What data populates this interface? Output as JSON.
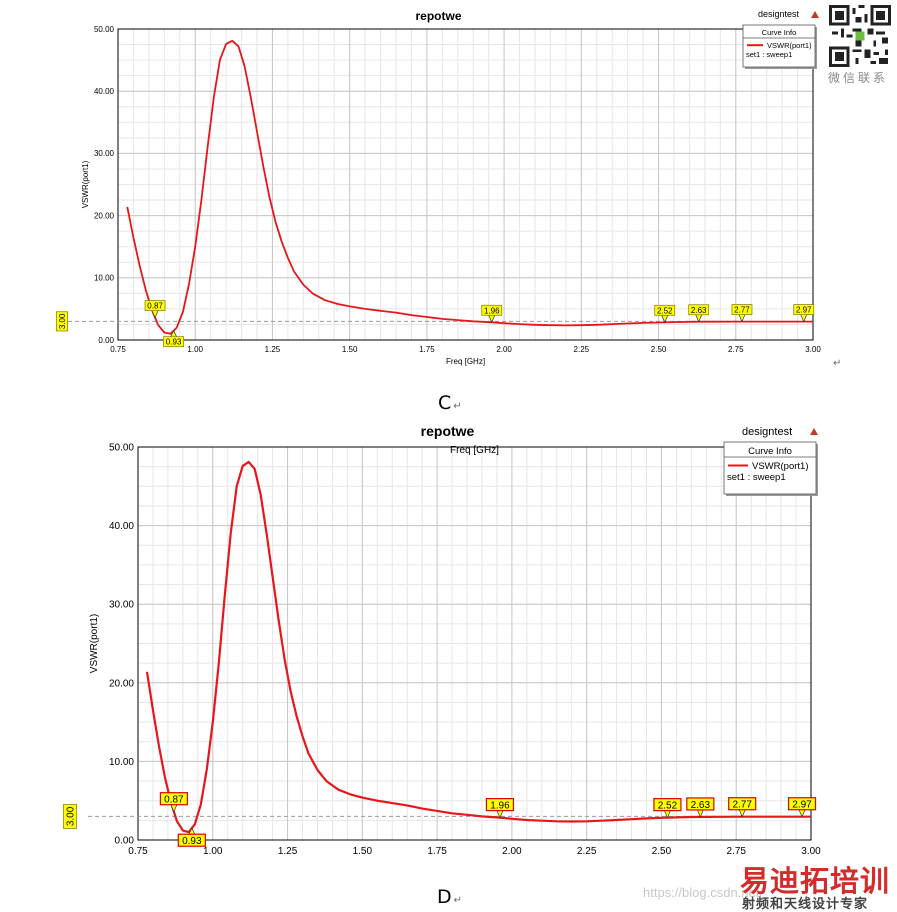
{
  "chart_data": [
    {
      "type": "line",
      "title": "repotwe",
      "header_right": "designtest",
      "xlabel": "Freq [GHz]",
      "ylabel": "VSWR(port1)",
      "xlim": [
        0.75,
        3.0
      ],
      "ylim": [
        0,
        50
      ],
      "xticks": [
        "0.75",
        "1.00",
        "1.25",
        "1.50",
        "1.75",
        "2.00",
        "2.25",
        "2.50",
        "2.75",
        "3.00"
      ],
      "yticks": [
        "0.00",
        "10.00",
        "20.00",
        "30.00",
        "40.00",
        "50.00"
      ],
      "grid": true,
      "legend": {
        "position": "top-right",
        "title": "Curve Info",
        "entry": "VSWR(port1)",
        "setup": "set1 : sweep1"
      },
      "reference_line": {
        "y": 3.0,
        "label": "3.00"
      },
      "series": [
        {
          "name": "VSWR(port1)",
          "color": "#e8161b",
          "x": [
            0.78,
            0.8,
            0.82,
            0.84,
            0.86,
            0.88,
            0.9,
            0.92,
            0.94,
            0.96,
            0.98,
            1.0,
            1.02,
            1.04,
            1.06,
            1.08,
            1.1,
            1.12,
            1.14,
            1.16,
            1.18,
            1.2,
            1.22,
            1.24,
            1.26,
            1.28,
            1.3,
            1.32,
            1.35,
            1.38,
            1.42,
            1.46,
            1.5,
            1.55,
            1.6,
            1.65,
            1.7,
            1.75,
            1.8,
            1.85,
            1.9,
            1.96,
            2.0,
            2.05,
            2.1,
            2.15,
            2.2,
            2.25,
            2.3,
            2.35,
            2.4,
            2.45,
            2.5,
            2.55,
            2.6,
            2.65,
            2.7,
            2.75,
            2.8,
            2.85,
            2.9,
            2.95,
            2.97,
            3.0
          ],
          "y": [
            21.4,
            16.5,
            12.0,
            8.0,
            4.8,
            2.4,
            1.2,
            1.0,
            2.0,
            4.5,
            9.0,
            15.0,
            22.5,
            31.0,
            39.0,
            45.0,
            47.6,
            48.1,
            47.2,
            44.0,
            39.0,
            33.5,
            28.0,
            23.0,
            19.0,
            15.8,
            13.2,
            11.0,
            8.9,
            7.5,
            6.4,
            5.8,
            5.4,
            5.0,
            4.7,
            4.4,
            4.0,
            3.7,
            3.4,
            3.2,
            3.0,
            2.85,
            2.7,
            2.55,
            2.45,
            2.38,
            2.35,
            2.38,
            2.45,
            2.55,
            2.65,
            2.75,
            2.82,
            2.88,
            2.92,
            2.94,
            2.95,
            2.96,
            2.96,
            2.96,
            2.96,
            2.96,
            2.96,
            2.96
          ]
        }
      ],
      "markers": [
        "0.87",
        "0.93",
        "1.96",
        "2.52",
        "2.63",
        "2.77",
        "2.97"
      ],
      "caption": "C"
    },
    {
      "type": "line",
      "title": "repotwe",
      "header_right": "designtest",
      "xlabel": "Freq [GHz]",
      "ylabel": "VSWR(port1)",
      "xlim": [
        0.75,
        3.0
      ],
      "ylim": [
        0,
        50
      ],
      "xticks": [
        "0.75",
        "1.00",
        "1.25",
        "1.50",
        "1.75",
        "2.00",
        "2.25",
        "2.50",
        "2.75",
        "3.00"
      ],
      "yticks": [
        "0.00",
        "10.00",
        "20.00",
        "30.00",
        "40.00",
        "50.00"
      ],
      "grid": true,
      "legend": {
        "position": "top-right",
        "title": "Curve Info",
        "entry": "VSWR(port1)",
        "setup": "set1 : sweep1"
      },
      "reference_line": {
        "y": 3.0,
        "label": "3.00"
      },
      "series": [
        {
          "name": "VSWR(port1)",
          "color": "#e8161b",
          "x": [
            0.78,
            0.8,
            0.82,
            0.84,
            0.86,
            0.88,
            0.9,
            0.92,
            0.94,
            0.96,
            0.98,
            1.0,
            1.02,
            1.04,
            1.06,
            1.08,
            1.1,
            1.12,
            1.14,
            1.16,
            1.18,
            1.2,
            1.22,
            1.24,
            1.26,
            1.28,
            1.3,
            1.32,
            1.35,
            1.38,
            1.42,
            1.46,
            1.5,
            1.55,
            1.6,
            1.65,
            1.7,
            1.75,
            1.8,
            1.85,
            1.9,
            1.96,
            2.0,
            2.05,
            2.1,
            2.15,
            2.2,
            2.25,
            2.3,
            2.35,
            2.4,
            2.45,
            2.5,
            2.55,
            2.6,
            2.65,
            2.7,
            2.75,
            2.8,
            2.85,
            2.9,
            2.95,
            2.97,
            3.0
          ],
          "y": [
            21.4,
            16.5,
            12.0,
            8.0,
            4.8,
            2.4,
            1.2,
            1.0,
            2.0,
            4.5,
            9.0,
            15.0,
            22.5,
            31.0,
            39.0,
            45.0,
            47.6,
            48.1,
            47.2,
            44.0,
            39.0,
            33.5,
            28.0,
            23.0,
            19.0,
            15.8,
            13.2,
            11.0,
            8.9,
            7.5,
            6.4,
            5.8,
            5.4,
            5.0,
            4.7,
            4.4,
            4.0,
            3.7,
            3.4,
            3.2,
            3.0,
            2.85,
            2.7,
            2.55,
            2.45,
            2.38,
            2.35,
            2.38,
            2.45,
            2.55,
            2.65,
            2.75,
            2.82,
            2.88,
            2.92,
            2.94,
            2.95,
            2.96,
            2.96,
            2.96,
            2.96,
            2.96,
            2.96,
            2.96
          ]
        }
      ],
      "markers": [
        "0.87",
        "0.93",
        "1.96",
        "2.52",
        "2.63",
        "2.77",
        "2.97"
      ],
      "caption": "D"
    }
  ],
  "qr_label": "微信联系",
  "watermark": {
    "url": "https://blog.csdn.net/",
    "brand": "易迪拓培训",
    "tagline": "射频和天线设计专家"
  }
}
